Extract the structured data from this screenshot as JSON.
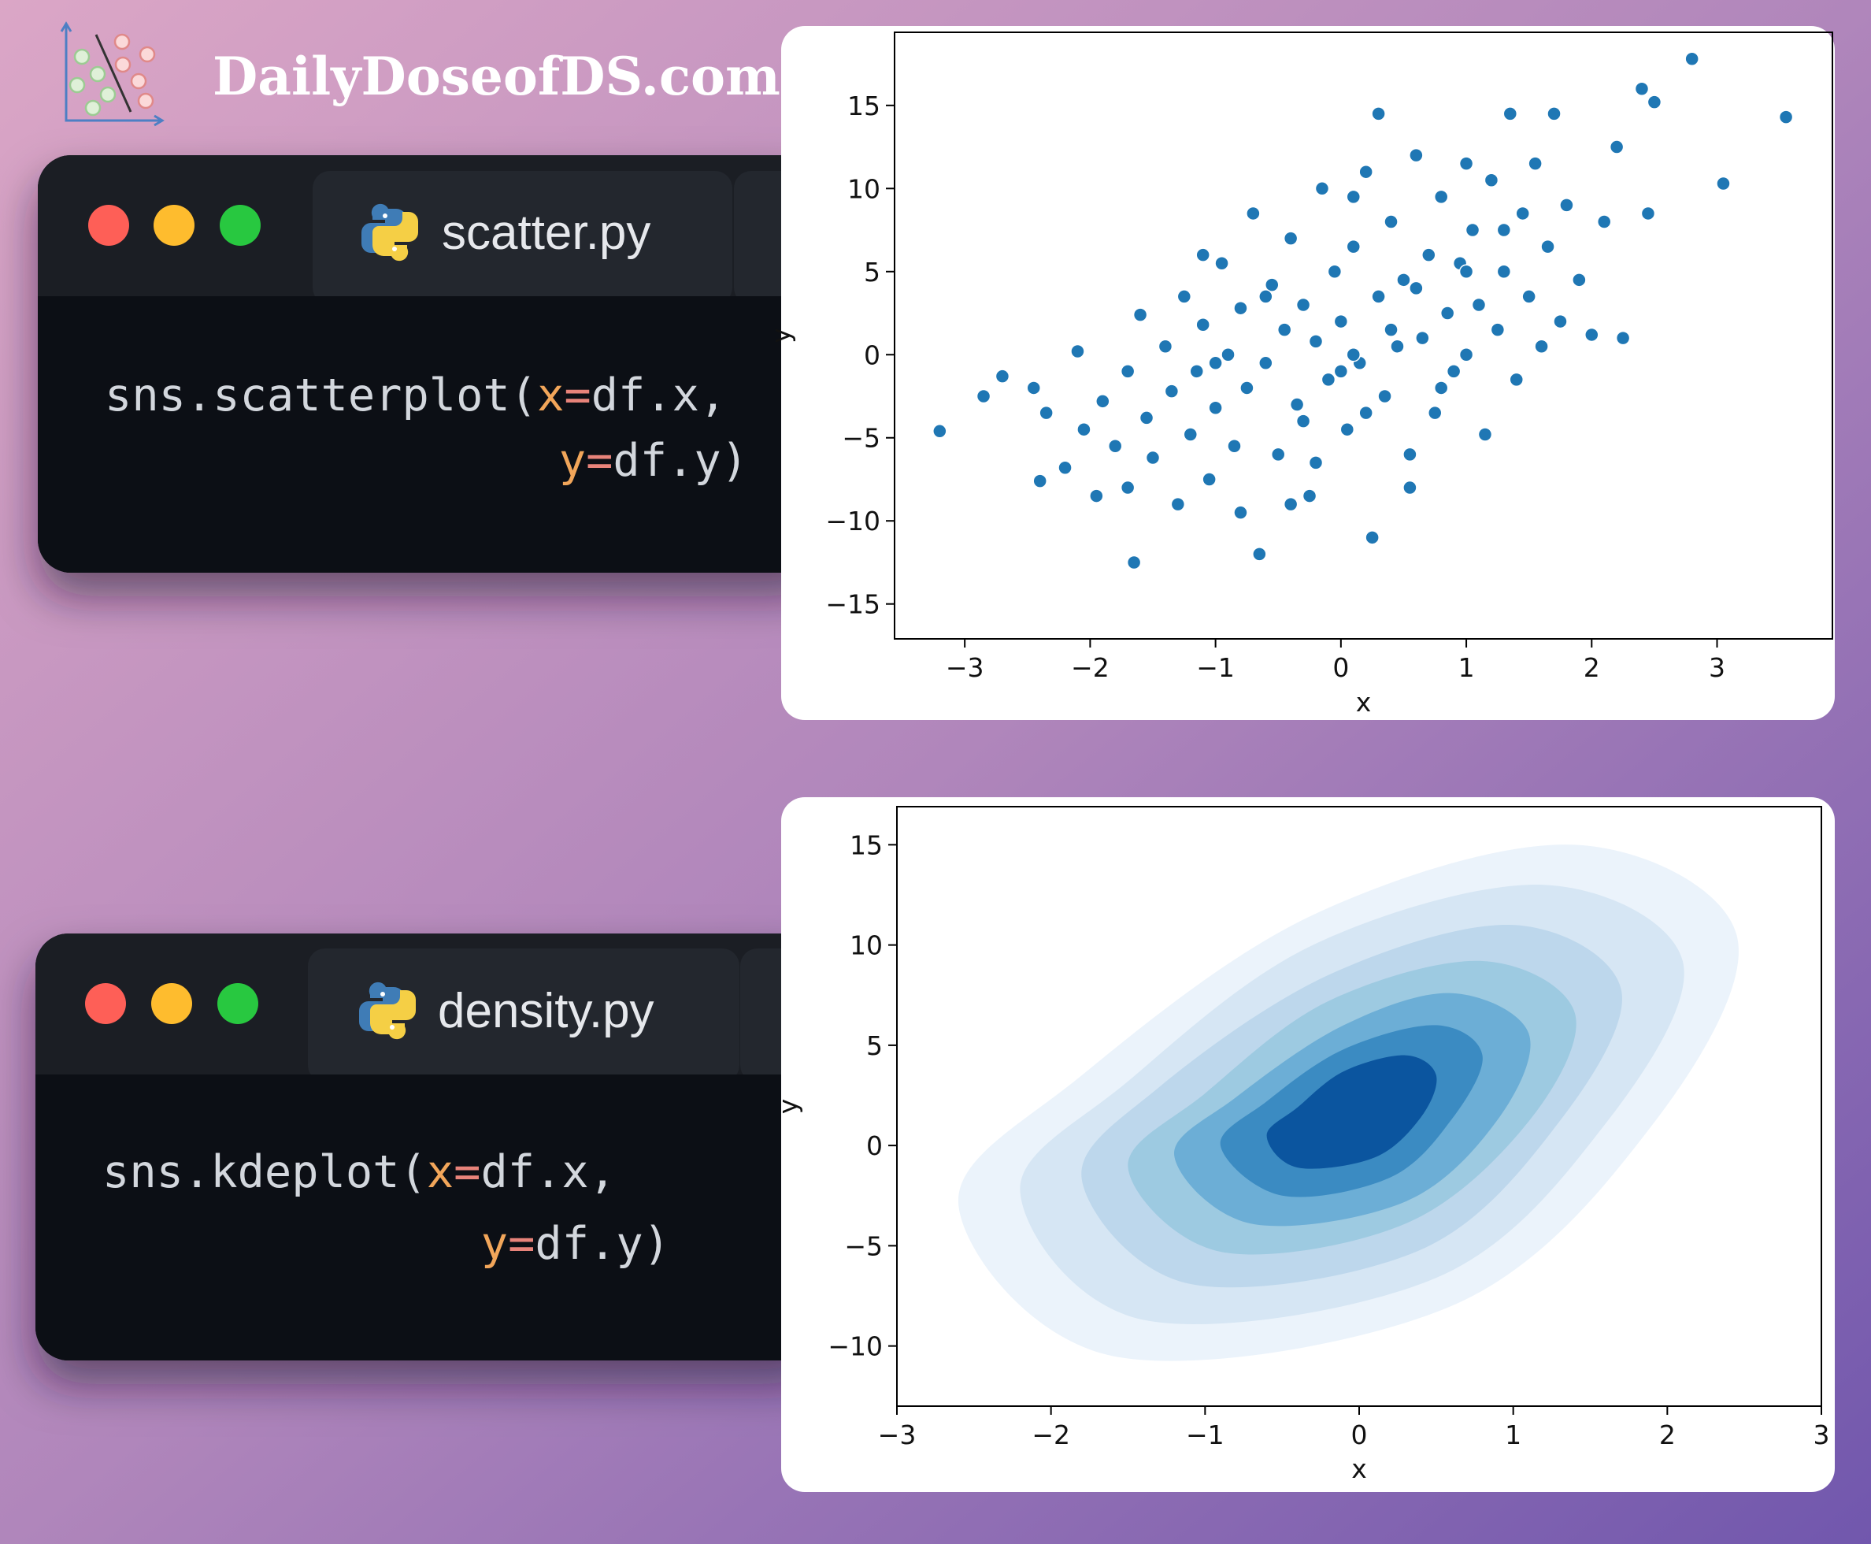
{
  "header": {
    "title": "DailyDoseofDS.com"
  },
  "code_windows": [
    {
      "filename": "scatter.py",
      "lines": [
        [
          {
            "text": "sns.scatterplot(",
            "color": "#d3d7dd"
          },
          {
            "text": "x",
            "color": "#f2a65a"
          },
          {
            "text": "=",
            "color": "#e8837a"
          },
          {
            "text": "df.x,",
            "color": "#d3d7dd"
          }
        ],
        [
          {
            "text": "y",
            "color": "#f2a65a"
          },
          {
            "text": "=",
            "color": "#e8837a"
          },
          {
            "text": "df.y)",
            "color": "#d3d7dd"
          }
        ]
      ]
    },
    {
      "filename": "density.py",
      "lines": [
        [
          {
            "text": "sns.kdeplot(",
            "color": "#d3d7dd"
          },
          {
            "text": "x",
            "color": "#f2a65a"
          },
          {
            "text": "=",
            "color": "#e8837a"
          },
          {
            "text": "df.x,",
            "color": "#d3d7dd"
          }
        ],
        [
          {
            "text": "y",
            "color": "#f2a65a"
          },
          {
            "text": "=",
            "color": "#e8837a"
          },
          {
            "text": "df.y)",
            "color": "#d3d7dd"
          }
        ]
      ]
    }
  ],
  "chart_data": [
    {
      "type": "scatter",
      "x_label": "x",
      "y_label": "y",
      "color": "#1f77b4",
      "edgecolor": "#ffffff",
      "xlim": [
        -3.56,
        3.92
      ],
      "ylim": [
        -17.1,
        19.4
      ],
      "xticks": [
        {
          "value": -3,
          "label": "−3"
        },
        {
          "value": -2,
          "label": "−2"
        },
        {
          "value": -1,
          "label": "−1"
        },
        0,
        1,
        2,
        3
      ],
      "yticks": [
        {
          "value": -15,
          "label": "−15"
        },
        {
          "value": -10,
          "label": "−10"
        },
        {
          "value": -5,
          "label": "−5"
        },
        0,
        5,
        10,
        15
      ],
      "x": [
        -3.2,
        -2.85,
        -2.7,
        -2.45,
        -2.4,
        -2.35,
        -2.2,
        -2.1,
        -2.05,
        -1.95,
        -1.9,
        -1.8,
        -1.7,
        -1.65,
        -1.6,
        -1.55,
        -1.5,
        -1.4,
        -1.35,
        -1.3,
        -1.25,
        -1.2,
        -1.15,
        -1.1,
        -1.05,
        -1.0,
        -0.95,
        -0.9,
        -0.85,
        -0.8,
        -0.75,
        -0.7,
        -0.65,
        -0.6,
        -0.55,
        -0.5,
        -0.45,
        -0.4,
        -0.35,
        -0.3,
        -0.25,
        -0.2,
        -0.15,
        -0.1,
        -0.05,
        0.0,
        0.05,
        0.1,
        0.15,
        0.2,
        0.25,
        0.3,
        0.35,
        0.4,
        0.45,
        0.5,
        0.55,
        0.6,
        0.65,
        0.7,
        0.75,
        0.8,
        0.85,
        0.9,
        0.95,
        1.0,
        1.05,
        1.1,
        1.15,
        1.2,
        1.25,
        1.3,
        1.35,
        1.4,
        1.45,
        1.5,
        1.55,
        1.6,
        1.65,
        1.7,
        1.75,
        1.8,
        1.9,
        2.0,
        2.1,
        2.2,
        2.25,
        2.4,
        2.45,
        2.5,
        2.8,
        3.05,
        3.55,
        0.3,
        -0.4,
        -1.7,
        0.55,
        1.0,
        -0.2,
        0.1,
        -0.8,
        -1.1,
        0.8,
        0.2,
        -0.6,
        0.4,
        0.0,
        -0.3,
        0.6,
        1.3,
        -1.0,
        1.0,
        0.1
      ],
      "y": [
        -4.6,
        -2.5,
        -1.3,
        -2.0,
        -7.6,
        -3.5,
        -6.8,
        0.2,
        -4.5,
        -8.5,
        -2.8,
        -5.5,
        -1.0,
        -12.5,
        2.4,
        -3.8,
        -6.2,
        0.5,
        -2.2,
        -9.0,
        3.5,
        -4.8,
        -1.0,
        1.8,
        -7.5,
        -3.2,
        5.5,
        0.0,
        -5.5,
        2.8,
        -2.0,
        8.5,
        -12.0,
        -0.5,
        4.2,
        -6.0,
        1.5,
        7.0,
        -3.0,
        3.0,
        -8.5,
        0.8,
        10.0,
        -1.5,
        5.0,
        2.0,
        -4.5,
        6.5,
        -0.5,
        11.0,
        -11.0,
        3.5,
        -2.5,
        8.0,
        0.5,
        4.5,
        -6.0,
        12.0,
        1.0,
        6.0,
        -3.5,
        9.5,
        2.5,
        -1.0,
        5.5,
        0.0,
        7.5,
        3.0,
        -4.8,
        10.5,
        1.5,
        5.0,
        14.5,
        -1.5,
        8.5,
        3.5,
        11.5,
        0.5,
        6.5,
        14.5,
        2.0,
        9.0,
        4.5,
        1.2,
        8.0,
        12.5,
        1.0,
        16.0,
        8.5,
        15.2,
        17.8,
        10.3,
        14.3,
        14.5,
        -9.0,
        -8.0,
        -8.0,
        11.5,
        -6.5,
        9.5,
        -9.5,
        6.0,
        -2.0,
        -3.5,
        3.5,
        1.5,
        -1.0,
        -4.0,
        4.0,
        7.5,
        -0.5,
        5.0,
        0.0
      ]
    },
    {
      "type": "kde",
      "x_label": "x",
      "y_label": "y",
      "xlim": [
        -3,
        3
      ],
      "ylim": [
        -13.0,
        16.9
      ],
      "xticks": [
        {
          "value": -3,
          "label": "−3"
        },
        {
          "value": -2,
          "label": "−2"
        },
        {
          "value": -1,
          "label": "−1"
        },
        0,
        1,
        2,
        3
      ],
      "yticks": [
        {
          "value": -10,
          "label": "−10"
        },
        {
          "value": -5,
          "label": "−5"
        },
        0,
        5,
        10,
        15
      ],
      "contours": [
        {
          "color": "#ebf3fb",
          "x": [
            -2.6,
            -1.6,
            0.6,
            1.9,
            2.45,
            1.4,
            -0.3,
            -1.8
          ],
          "y": [
            -3.0,
            -10.5,
            -8.0,
            1.0,
            10.5,
            15.0,
            11.5,
            3.5
          ]
        },
        {
          "color": "#d6e6f4",
          "x": [
            -2.2,
            -1.4,
            0.5,
            1.6,
            2.1,
            1.2,
            -0.3,
            -1.5
          ],
          "y": [
            -2.3,
            -8.7,
            -6.6,
            1.1,
            9.2,
            13.0,
            10.0,
            3.2
          ]
        },
        {
          "color": "#bdd7ec",
          "x": [
            -1.8,
            -1.1,
            0.4,
            1.3,
            1.7,
            1.0,
            -0.2,
            -1.3
          ],
          "y": [
            -1.7,
            -6.9,
            -5.2,
            1.2,
            7.8,
            11.0,
            8.5,
            2.9
          ]
        },
        {
          "color": "#9dcae1",
          "x": [
            -1.5,
            -0.9,
            0.3,
            1.1,
            1.4,
            0.8,
            -0.2,
            -1.0
          ],
          "y": [
            -1.1,
            -5.3,
            -3.9,
            1.2,
            6.6,
            9.2,
            7.2,
            2.6
          ]
        },
        {
          "color": "#6caed6",
          "x": [
            -1.2,
            -0.7,
            0.3,
            0.9,
            1.1,
            0.6,
            -0.1,
            -0.8
          ],
          "y": [
            -0.5,
            -3.9,
            -2.8,
            1.3,
            5.6,
            7.6,
            6.0,
            2.4
          ]
        },
        {
          "color": "#3b8bc2",
          "x": [
            -0.9,
            -0.5,
            0.2,
            0.6,
            0.8,
            0.5,
            -0.1,
            -0.6
          ],
          "y": [
            0.0,
            -2.5,
            -1.6,
            1.3,
            4.5,
            6.0,
            4.8,
            2.2
          ]
        },
        {
          "color": "#0b559f",
          "x": [
            -0.6,
            -0.4,
            0.1,
            0.4,
            0.5,
            0.3,
            -0.1,
            -0.4
          ],
          "y": [
            0.5,
            -1.1,
            -0.6,
            1.4,
            3.5,
            4.5,
            3.7,
            1.9
          ]
        }
      ]
    }
  ]
}
